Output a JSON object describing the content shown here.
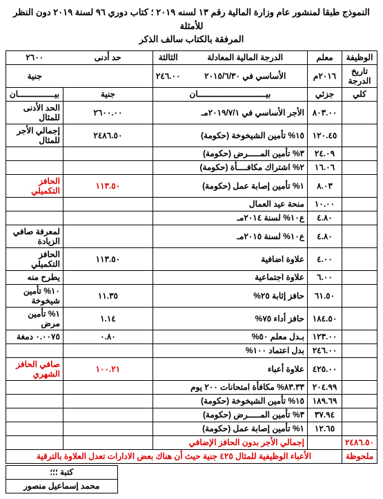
{
  "header": {
    "line1": "النموذج طبقا لمنشور عام وزارة المالية رقم ١٣ لسنه ٢٠١٩ ؛ كتاب دوري ٩٦ لسنة ٢٠١٩ دون النظر للأمثلة",
    "line2": "المرفقة بالكتاب سالف الذكر"
  },
  "top_labels": {
    "job_label": "الوظيفة",
    "job_value": "معلم",
    "grade_label": "الدرجة المالية المعادلة",
    "grade_value": "الثالثة",
    "min_label": "حد أدنى",
    "min_value": "٢٦٠٠",
    "date_label": "تاريخ الدرجة",
    "date_value": "٢٠١٦م",
    "base_label": "الأساسي في ٢٠١٥/٦/٣٠",
    "base_value": "٢٤٦.٠٠",
    "juneh": "جنية"
  },
  "col_headers": {
    "kulli": "كلي",
    "juzi": "جزئي",
    "bayan": "بيــــــــــــــــــــــــــــان",
    "juneh": "جنية",
    "bayan2": "بيـــــــــــــــان"
  },
  "rows_main": [
    {
      "k": "",
      "j": "٨٠٣.٠٠",
      "d": "الأجر الأساسي في ٢٠١٩/٧/١مـ",
      "g": "٢٦٠٠.٠٠",
      "t": "الحد الأدنى للمثال"
    },
    {
      "k": "",
      "j": "١٢٠.٤٥",
      "d": "١٥% تأمين الشيخوخة (حكومة)",
      "g": "٢٤٨٦.٥٠",
      "t": "إجمالي الأجر للمثال"
    },
    {
      "k": "",
      "j": "٢٤.٠٩",
      "d": "٣% تأمين المـــــرض (حكومة)",
      "g": "",
      "t": ""
    },
    {
      "k": "",
      "j": "١٦.٠٦",
      "d": "٢% اشتراك مكافــــأة (حكومة)",
      "g": "",
      "t": ""
    },
    {
      "k": "",
      "j": "٨.٠٣",
      "d": "١% تأمين إصابة عمل (حكومة)",
      "g": "١١٣.٥٠",
      "t": "الحافز التكميلي",
      "t_red": true,
      "g_red": true
    },
    {
      "k": "",
      "j": "١٠.٠٠",
      "d": "منحة عيد العمال",
      "g": "",
      "t": ""
    },
    {
      "k": "",
      "j": "٤.٨٠",
      "d": "ع١٠% لسنة ٢٠١٤مـ",
      "g": "",
      "t": ""
    },
    {
      "k": "",
      "j": "٤.٨٠",
      "d": "ع١٠% لسنة ٢٠١٥مـ",
      "g": "",
      "t": "لمعرفة صافي الزيادة"
    },
    {
      "k": "",
      "j": "٤.٠٠",
      "d": "علاوة اضافية",
      "g": "١١٣.٥٠",
      "t": "الحافز التكميلي"
    },
    {
      "k": "",
      "j": "٦.٠٠",
      "d": "علاوة اجتماعية",
      "g": "",
      "t": "يطرح منه"
    },
    {
      "k": "",
      "j": "٦١.٥٠",
      "d": "حافز إثابة ٢٥%",
      "g": "١١.٣٥",
      "t": "١٠% تأمين شيخوخة"
    },
    {
      "k": "",
      "j": "١٨٤.٥٠",
      "d": "حافز أداء ٧٥%",
      "g": "١.١٤",
      "t": "١% تأمين مرض"
    },
    {
      "k": "",
      "j": "١٢٣.٠٠",
      "d": "بـدل معلم ٥٠%",
      "g": "٠.٨٠",
      "t": "٠.٠٠٧٥ دمغة"
    },
    {
      "k": "",
      "j": "٢٤٦.٠٠",
      "d": "بدل اعتماد ١٠٠%",
      "g": "",
      "t": ""
    },
    {
      "k": "",
      "j": "٤٢٥.٠٠",
      "d": "علاوة أعباء",
      "g": "١٠٠.٢١",
      "t": "صافي الحافز الشهري",
      "t_red": true,
      "g_red": true
    },
    {
      "k": "",
      "j": "٢٠٤.٩٩",
      "d": "٨٣.٣٣% مكافأة امتحانات ٢٠٠ يوم",
      "g": "",
      "t": ""
    },
    {
      "k": "",
      "j": "١٨٩.٦٩",
      "d": "١٥% تأمين الشيخوخة (حكومة)",
      "g": "",
      "t": ""
    },
    {
      "k": "",
      "j": "٣٧.٩٤",
      "d": "٣% تأمين المـــــرض (حكومة)",
      "g": "",
      "t": ""
    },
    {
      "k": "",
      "j": "١٢.٦٥",
      "d": "١% تأمين إصابة عمل (حكومة)",
      "g": "",
      "t": ""
    }
  ],
  "total_row": {
    "k": "٢٤٨٦.٥٠",
    "d": "إجمالي الأجر بدون الحافز الإضافي"
  },
  "note": {
    "label": "ملحوظة",
    "text": "الأعباء الوظيفية للمثال ٤٢٥ جنية حيث أن هناك بعض الادارات تعدل العلاوة بالترقية"
  },
  "signature": {
    "l1": "كتبة ؛؛؛",
    "l2": "محمد إسماعيل منصور"
  }
}
